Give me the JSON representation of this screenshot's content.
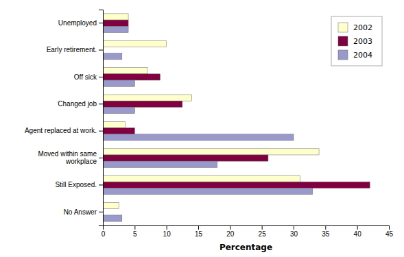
{
  "chart_data": {
    "type": "bar",
    "orientation": "horizontal",
    "categories": [
      "No Answer",
      "Still Exposed.",
      "Moved within same\nworkplace",
      "Agent replaced at work.",
      "Changed job",
      "Off sick",
      "Early retirement.",
      "Unemployed"
    ],
    "series": [
      {
        "name": "2002",
        "color": "#ffffcc",
        "values": [
          2.5,
          31,
          34,
          3.5,
          14,
          7,
          10,
          4
        ]
      },
      {
        "name": "2003",
        "color": "#800040",
        "values": [
          0,
          42,
          26,
          5,
          12.5,
          9,
          0,
          4
        ]
      },
      {
        "name": "2004",
        "color": "#9999cc",
        "values": [
          3,
          33,
          18,
          30,
          5,
          5,
          3,
          4
        ]
      }
    ],
    "xlabel": "Percentage",
    "xlim": [
      0,
      45
    ],
    "xticks": [
      0,
      5,
      10,
      15,
      20,
      25,
      30,
      35,
      40,
      45
    ],
    "legend": "upper right",
    "grid": false
  }
}
